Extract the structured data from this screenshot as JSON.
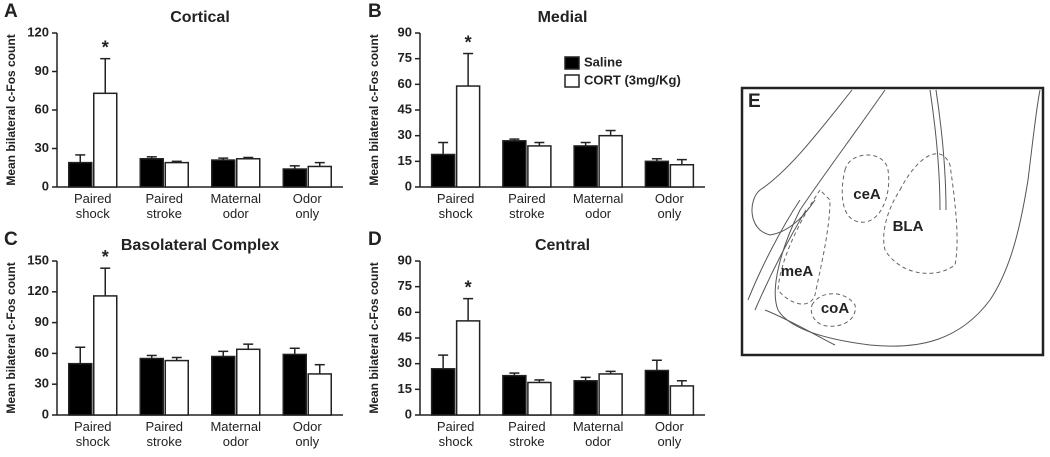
{
  "chart_data": [
    {
      "type": "bar",
      "panel_label": "A",
      "title": "Cortical",
      "y_label": "Mean bilateral c-Fos count",
      "categories": [
        "Paired shock",
        "Paired stroke",
        "Maternal odor",
        "Odor only"
      ],
      "series": [
        {
          "color": "#000000",
          "values": [
            19,
            22,
            21,
            14
          ],
          "errors": [
            6,
            1.5,
            1.5,
            2.5
          ]
        },
        {
          "color": "#ffffff",
          "values": [
            73,
            19,
            22,
            16
          ],
          "errors": [
            27,
            1,
            1,
            3
          ]
        }
      ],
      "ylim": [
        0,
        120
      ],
      "yticks": [
        0,
        30,
        60,
        90,
        120
      ],
      "annotation": "*"
    },
    {
      "type": "bar",
      "panel_label": "B",
      "title": "Medial",
      "y_label": "Mean bilateral c-Fos count",
      "categories": [
        "Paired shock",
        "Paired stroke",
        "Maternal odor",
        "Odor only"
      ],
      "series": [
        {
          "name": "Saline",
          "color": "#000000",
          "values": [
            19,
            27,
            24,
            15
          ],
          "errors": [
            7,
            1,
            2,
            1.5
          ]
        },
        {
          "name": "CORT (3mg/Kg)",
          "color": "#ffffff",
          "values": [
            59,
            24,
            30,
            13
          ],
          "errors": [
            19,
            2,
            3,
            3
          ]
        }
      ],
      "ylim": [
        0,
        90
      ],
      "yticks": [
        0,
        15,
        30,
        45,
        60,
        75,
        90
      ],
      "annotation": "*",
      "legend": "upper right"
    },
    {
      "type": "bar",
      "panel_label": "C",
      "title": "Basolateral Complex",
      "y_label": "Mean bilateral c-Fos count",
      "categories": [
        "Paired shock",
        "Paired stroke",
        "Maternal odor",
        "Odor only"
      ],
      "series": [
        {
          "color": "#000000",
          "values": [
            50,
            55,
            57,
            59
          ],
          "errors": [
            16,
            3,
            5,
            6
          ]
        },
        {
          "color": "#ffffff",
          "values": [
            116,
            53,
            64,
            40
          ],
          "errors": [
            27,
            3,
            5,
            9
          ]
        }
      ],
      "ylim": [
        0,
        150
      ],
      "yticks": [
        0,
        30,
        60,
        90,
        120,
        150
      ],
      "annotation": "*"
    },
    {
      "type": "bar",
      "panel_label": "D",
      "title": "Central",
      "y_label": "Mean bilateral c-Fos count",
      "categories": [
        "Paired shock",
        "Paired stroke",
        "Maternal odor",
        "Odor only"
      ],
      "series": [
        {
          "color": "#000000",
          "values": [
            27,
            23,
            20,
            26
          ],
          "errors": [
            8,
            1.5,
            2,
            6
          ]
        },
        {
          "color": "#ffffff",
          "values": [
            55,
            19,
            24,
            17
          ],
          "errors": [
            13,
            1.5,
            1.5,
            3
          ]
        }
      ],
      "ylim": [
        0,
        90
      ],
      "yticks": [
        0,
        15,
        30,
        45,
        60,
        75,
        90
      ],
      "annotation": "*"
    }
  ],
  "diagram": {
    "label": "E",
    "regions": [
      "ceA",
      "BLA",
      "meA",
      "coA"
    ]
  }
}
